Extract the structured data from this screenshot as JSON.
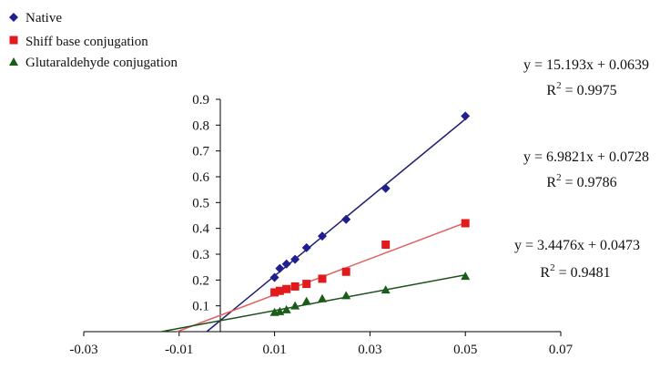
{
  "chart_data": {
    "type": "scatter",
    "title": "",
    "xlabel": "",
    "ylabel": "",
    "xlim": [
      -0.03,
      0.07
    ],
    "ylim": [
      0,
      0.9
    ],
    "x_ticks": [
      "-0.03",
      "-0.01",
      "0.01",
      "0.03",
      "0.05",
      "0.07"
    ],
    "y_ticks": [
      "0.1",
      "0.2",
      "0.3",
      "0.4",
      "0.5",
      "0.6",
      "0.7",
      "0.8",
      "0.9"
    ],
    "grid": false,
    "legend_position": "top-left",
    "series": [
      {
        "name": "Native",
        "marker": "diamond",
        "color": "#1f1f8f",
        "points": [
          {
            "x": 0.01,
            "y": 0.21
          },
          {
            "x": 0.0111,
            "y": 0.245
          },
          {
            "x": 0.0125,
            "y": 0.262
          },
          {
            "x": 0.0143,
            "y": 0.28
          },
          {
            "x": 0.0167,
            "y": 0.325
          },
          {
            "x": 0.02,
            "y": 0.37
          },
          {
            "x": 0.025,
            "y": 0.435
          },
          {
            "x": 0.0333,
            "y": 0.555
          },
          {
            "x": 0.05,
            "y": 0.835
          }
        ],
        "trendline": {
          "slope": 15.193,
          "intercept": 0.0639
        },
        "equation": "y = 15.193x + 0.0639",
        "r2_prefix": "R",
        "r2_sup": "2",
        "r2_value": " = 0.9975"
      },
      {
        "name": "Shiff base conjugation",
        "marker": "square",
        "color": "#e31a1c",
        "points": [
          {
            "x": 0.01,
            "y": 0.152
          },
          {
            "x": 0.0111,
            "y": 0.158
          },
          {
            "x": 0.0125,
            "y": 0.165
          },
          {
            "x": 0.0143,
            "y": 0.175
          },
          {
            "x": 0.0167,
            "y": 0.185
          },
          {
            "x": 0.02,
            "y": 0.205
          },
          {
            "x": 0.025,
            "y": 0.232
          },
          {
            "x": 0.0333,
            "y": 0.337
          },
          {
            "x": 0.05,
            "y": 0.42
          }
        ],
        "trendline": {
          "slope": 6.9821,
          "intercept": 0.0728
        },
        "equation": "y = 6.9821x + 0.0728",
        "r2_prefix": "R",
        "r2_sup": "2",
        "r2_value": " = 0.9786"
      },
      {
        "name": "Glutaraldehyde conjugation",
        "marker": "triangle",
        "color": "#1a5c1a",
        "points": [
          {
            "x": 0.01,
            "y": 0.075
          },
          {
            "x": 0.0111,
            "y": 0.078
          },
          {
            "x": 0.0125,
            "y": 0.085
          },
          {
            "x": 0.0143,
            "y": 0.1
          },
          {
            "x": 0.0167,
            "y": 0.118
          },
          {
            "x": 0.02,
            "y": 0.128
          },
          {
            "x": 0.025,
            "y": 0.14
          },
          {
            "x": 0.0333,
            "y": 0.162
          },
          {
            "x": 0.05,
            "y": 0.215
          }
        ],
        "trendline": {
          "slope": 3.4476,
          "intercept": 0.0473
        },
        "equation": "y = 3.4476x + 0.0473",
        "r2_prefix": "R",
        "r2_sup": "2",
        "r2_value": " = 0.9481"
      }
    ]
  }
}
